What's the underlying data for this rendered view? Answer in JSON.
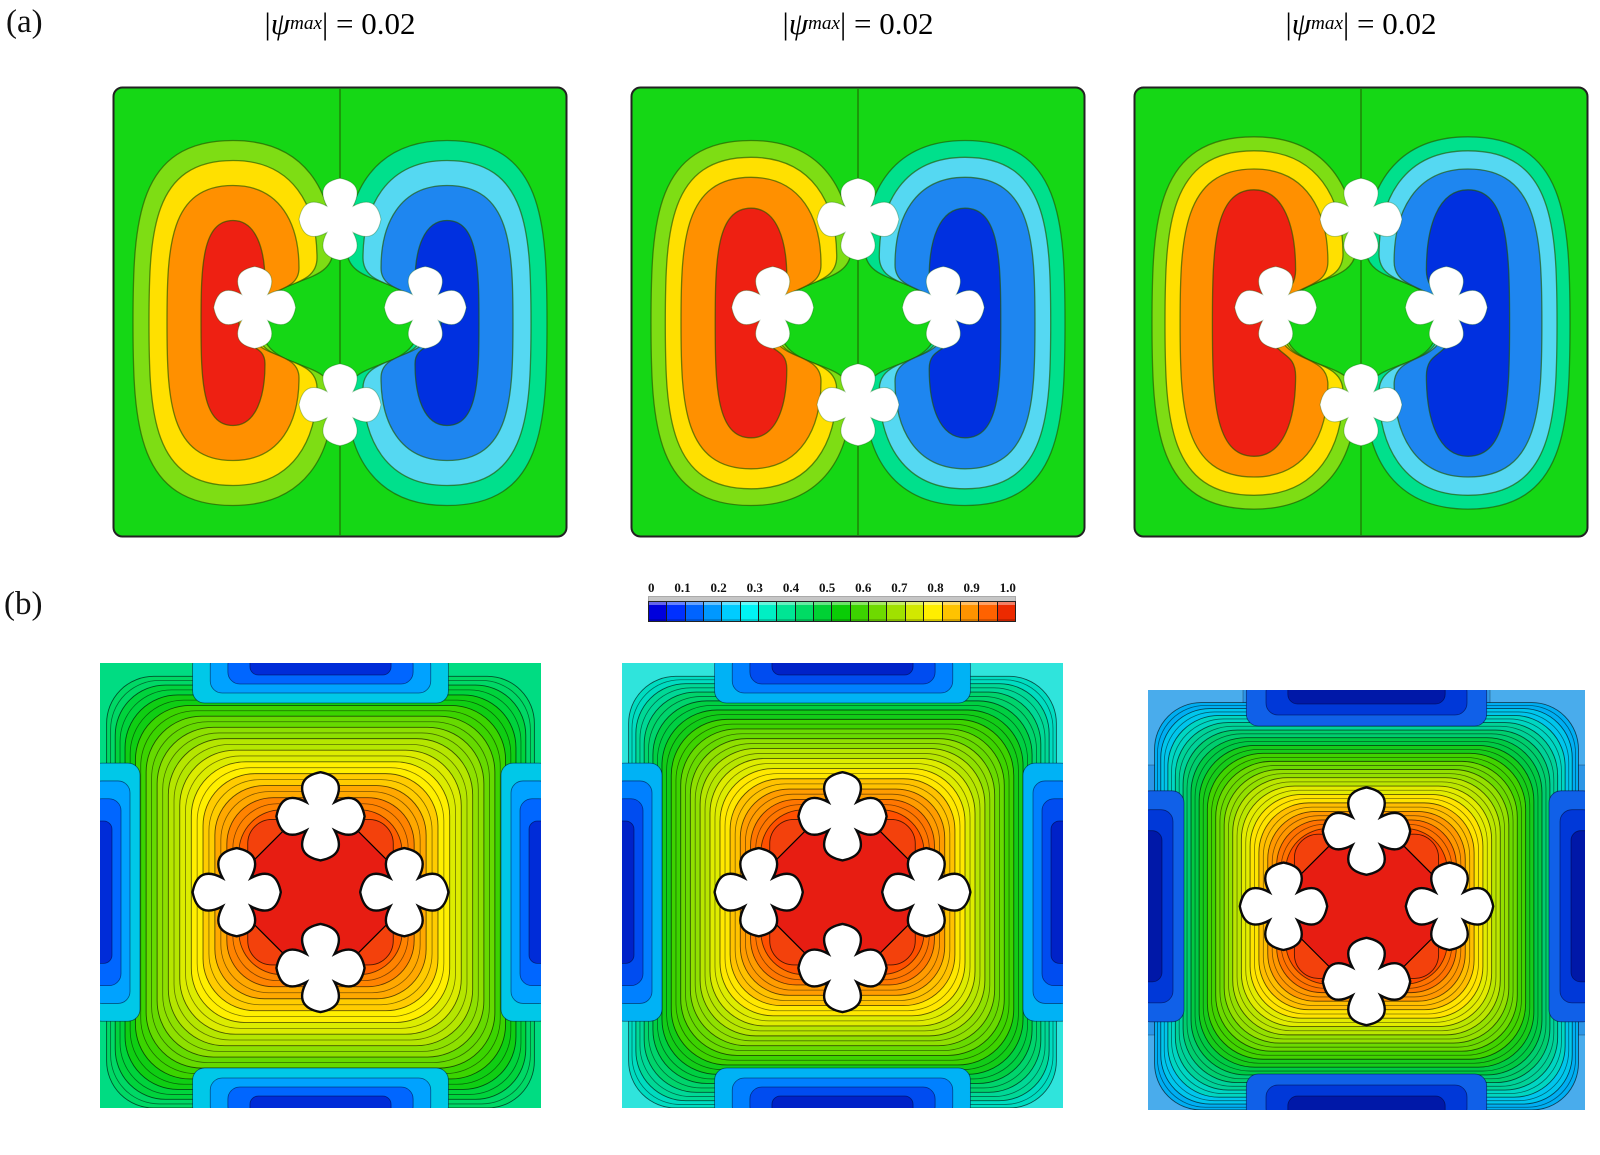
{
  "figure": {
    "row_a_label": "(a)",
    "row_b_label": "(b)",
    "title_bar": "|",
    "title_psi": "ψ",
    "title_sub": "max",
    "title_rest": "| = 0.02"
  },
  "colorbar": {
    "ticks": [
      "0",
      "0.1",
      "0.2",
      "0.3",
      "0.4",
      "0.5",
      "0.6",
      "0.7",
      "0.8",
      "0.9",
      "1.0"
    ],
    "colors": [
      "#0000DC",
      "#0030FF",
      "#0064FF",
      "#0098FF",
      "#00CCFF",
      "#00F4F4",
      "#00EFC4",
      "#00E594",
      "#00DB64",
      "#00D134",
      "#0ACC06",
      "#3CD300",
      "#6EDA00",
      "#A0E100",
      "#D2E800",
      "#FFEE00",
      "#FFC300",
      "#FF9300",
      "#FF6200",
      "#EC2A00"
    ]
  },
  "panels_a": [
    {
      "name": "streamfunction-panel-1",
      "bg": "#15D715",
      "line": "rgba(35,85,0,0.65)",
      "pos_colors": [
        "#7EDD14",
        "#FFE000",
        "#FF9000",
        "#EE2012"
      ],
      "neg_colors": [
        "#00E08C",
        "#55D8F2",
        "#1E86F0",
        "#0030E0"
      ],
      "band_scale": [
        1,
        1,
        1,
        1
      ]
    },
    {
      "name": "streamfunction-panel-2",
      "bg": "#15D715",
      "line": "rgba(35,85,0,0.65)",
      "pos_colors": [
        "#7EDD14",
        "#FFE000",
        "#FF9000",
        "#EE2012"
      ],
      "neg_colors": [
        "#00E08C",
        "#55D8F2",
        "#1E86F0",
        "#0030E0"
      ],
      "band_scale": [
        1,
        1.02,
        1.06,
        1.12
      ]
    },
    {
      "name": "streamfunction-panel-3",
      "bg": "#15D715",
      "line": "rgba(35,85,0,0.65)",
      "pos_colors": [
        "#7EDD14",
        "#FFE000",
        "#FF9000",
        "#EE2012"
      ],
      "neg_colors": [
        "#00E08C",
        "#55D8F2",
        "#1E86F0",
        "#0030E0"
      ],
      "band_scale": [
        1.02,
        1.06,
        1.12,
        1.3
      ]
    }
  ],
  "panels_b": [
    {
      "name": "isotherm-panel-1",
      "bg": "#00DC82",
      "petal": "#F3410C",
      "core": "#E71D12",
      "rings": [
        "#00D865",
        "#00D33C",
        "#0FCE13",
        "#3BD400",
        "#66DA00",
        "#8EE000",
        "#B5E600",
        "#DCEC00",
        "#FFEF00",
        "#FFCC00",
        "#FFA800",
        "#FF8300",
        "#FF5E00"
      ],
      "edge_colors": [
        "#00C8E8",
        "#00A2FF",
        "#0066FF",
        "#002CD8"
      ],
      "edge_depths": [
        40,
        30,
        21,
        12
      ],
      "edge_widths": [
        0.58,
        0.5,
        0.42,
        0.32
      ]
    },
    {
      "name": "isotherm-panel-2",
      "bg": "#2FE4DC",
      "petal": "#F3410C",
      "core": "#E71D12",
      "rings": [
        "#00DCC0",
        "#00D896",
        "#00D46C",
        "#00CF42",
        "#12CC18",
        "#3DD300",
        "#68DA00",
        "#90E000",
        "#B7E600",
        "#DEEC00",
        "#FFE800",
        "#FFC200",
        "#FF9C00",
        "#FF7600",
        "#FF5000"
      ],
      "edge_colors": [
        "#00B2F5",
        "#0080FF",
        "#004CF0",
        "#0022C8"
      ],
      "edge_depths": [
        40,
        30,
        21,
        12
      ],
      "edge_widths": [
        0.58,
        0.5,
        0.42,
        0.32
      ]
    },
    {
      "name": "isotherm-panel-3",
      "bg": "#2E96E6",
      "corner": "#49ACEC",
      "petal": "#F3410C",
      "core": "#E71D12",
      "rings": [
        "#00AEF2",
        "#00C6EC",
        "#00D6C2",
        "#00D298",
        "#00CE6E",
        "#00CA44",
        "#16CC1A",
        "#41D300",
        "#6CDA00",
        "#94E000",
        "#BBE600",
        "#E2EC00",
        "#FFE400",
        "#FFBE00",
        "#FF9800",
        "#FF7200",
        "#FF4C00"
      ],
      "edge_colors": [
        "#1060E8",
        "#0038D8",
        "#0018A8"
      ],
      "edge_depths": [
        36,
        25,
        14
      ],
      "edge_widths": [
        0.55,
        0.46,
        0.36
      ]
    }
  ],
  "chart_data": {
    "type": "contour",
    "figure_kind": "CFD natural-convection figure: streamline contours (row a) and isotherm contours (row b) in a square enclosure containing four cross-shaped (quatrefoil) obstacles arranged in a diamond around the cavity center",
    "colorbar": {
      "min": 0,
      "max": 1.0,
      "tick_step": 0.1,
      "n_segments": 20,
      "ticks": [
        0,
        0.1,
        0.2,
        0.3,
        0.4,
        0.5,
        0.6,
        0.7,
        0.8,
        0.9,
        1.0
      ],
      "segment_colors": [
        "#0000DC",
        "#0030FF",
        "#0064FF",
        "#0098FF",
        "#00CCFF",
        "#00F4F4",
        "#00EFC4",
        "#00E594",
        "#00DB64",
        "#00D134",
        "#0ACC06",
        "#3CD300",
        "#6EDA00",
        "#A0E100",
        "#D2E800",
        "#FFEE00",
        "#FFC300",
        "#FF9300",
        "#FF6200",
        "#EC2A00"
      ],
      "applies_to": "row (b) isotherms, dimensionless temperature 0 to 1.0"
    },
    "rows": [
      {
        "row_label": "(a)",
        "field": "streamfunction ψ",
        "panels": [
          {
            "title": "|ψmax| = 0.02",
            "psi_max_abs": 0.02,
            "left_cell": "positive circulation, red core",
            "right_cell": "negative circulation, dark-blue core",
            "background_level": "≈0 (green)"
          },
          {
            "title": "|ψmax| = 0.02",
            "psi_max_abs": 0.02,
            "left_cell": "positive circulation, red core",
            "right_cell": "negative circulation, dark-blue core",
            "background_level": "≈0 (green)"
          },
          {
            "title": "|ψmax| = 0.02",
            "psi_max_abs": 0.02,
            "left_cell": "positive circulation, red core (largest of the three)",
            "right_cell": "negative circulation, dark-blue core (largest of the three)",
            "background_level": "≈0 (green)"
          }
        ]
      },
      {
        "row_label": "(b)",
        "field": "isotherms θ (dimensionless temperature)",
        "panels": [
          {
            "hot_core_theta": 1.0,
            "cold_wall_patches_theta": 0.0,
            "ambient_theta_estimate": 0.45,
            "description": "red hot core around the four obstacles, dark-blue cold patches at mid-edges, green background"
          },
          {
            "hot_core_theta": 1.0,
            "cold_wall_patches_theta": 0.0,
            "ambient_theta_estimate": 0.3,
            "description": "red hot core around the four obstacles, dark-blue cold patches at mid-edges, cyan background"
          },
          {
            "hot_core_theta": 1.0,
            "cold_wall_patches_theta": 0.0,
            "ambient_theta_estimate": 0.2,
            "description": "red hot core around the four obstacles, dark-blue cold patches at mid-edges, blue background"
          }
        ]
      }
    ],
    "obstacles": {
      "count_per_panel": 4,
      "shape": "white cross / quatrefoil",
      "arrangement": "diamond (top, left, right, bottom of cavity center)"
    }
  }
}
